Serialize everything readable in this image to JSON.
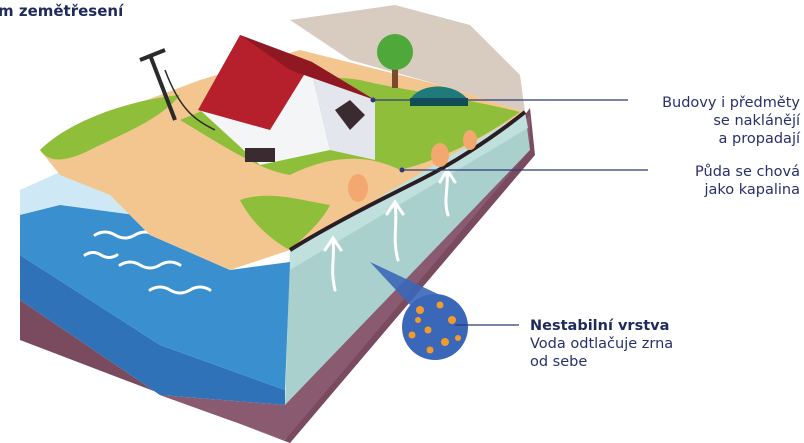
{
  "title": "m zemětřesení",
  "callouts": {
    "buildings": {
      "lines": [
        "Budovy i předměty",
        "se naklánějí",
        "a propadají"
      ]
    },
    "soil": {
      "lines": [
        "Půda se chová",
        "jako kapalina"
      ]
    },
    "layer": {
      "heading": "Nestabilní vrstva",
      "lines": [
        "Voda odtlačuje zrna",
        "od sebe"
      ]
    }
  },
  "colors": {
    "text": "#27306b",
    "leader_line": "#2b3a78",
    "water": "#3a8fcf",
    "ground_top": "#8fbf3a",
    "sand": "#f3c690",
    "soil_block": "#9cc7c4",
    "base_layer": "#7a4a5f",
    "roof": "#b5202c",
    "particles": "#f29b2b",
    "zoom_circle": "#3a67b8"
  },
  "icons": [
    "house-icon",
    "tree-icon",
    "utility-pole-icon",
    "car-icon",
    "arrow-up-icon"
  ]
}
